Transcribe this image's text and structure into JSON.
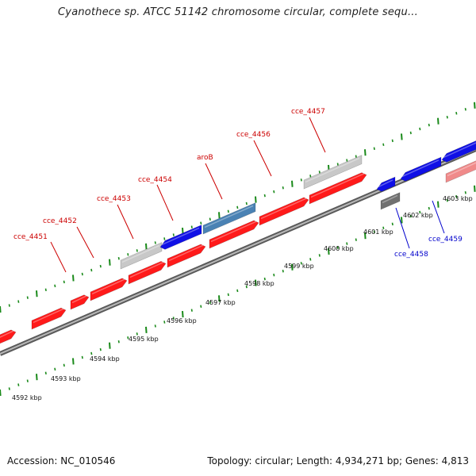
{
  "title": "Cyanothece sp. ATCC 51142 chromosome circular, complete sequ...",
  "footer": {
    "accession": "Accession: NC_010546",
    "summary": "Topology: circular; Length: 4,934,271 bp; Genes: 4,813"
  },
  "colors": {
    "forward_gene": "#ff1a1a",
    "reverse_gene": "#1010e6",
    "highlight_gene": "#4a82b4",
    "pseudo_gene": "#c8c8c8",
    "dark_feature": "#707070",
    "faded_gene": "#f08a8a",
    "backbone": "#8a8a8a",
    "tick": "#1a8a1a",
    "label_forward": "#cc0000",
    "label_reverse": "#0000cc"
  },
  "genes": [
    {
      "label": "cce_4451",
      "color": "label_forward"
    },
    {
      "label": "cce_4452",
      "color": "label_forward"
    },
    {
      "label": "cce_4453",
      "color": "label_forward"
    },
    {
      "label": "cce_4454",
      "color": "label_forward"
    },
    {
      "label": "aroB",
      "color": "label_forward"
    },
    {
      "label": "cce_4456",
      "color": "label_forward"
    },
    {
      "label": "cce_4457",
      "color": "label_forward"
    },
    {
      "label": "cce_4458",
      "color": "label_reverse"
    },
    {
      "label": "cce_4459",
      "color": "label_reverse"
    }
  ],
  "ticks": [
    "4592 kbp",
    "4593 kbp",
    "4594 kbp",
    "4595 kbp",
    "4596 kbp",
    "4597 kbp",
    "4598 kbp",
    "4599 kbp",
    "4600 kbp",
    "4601 kbp",
    "4602 kbp",
    "4603 kbp"
  ]
}
